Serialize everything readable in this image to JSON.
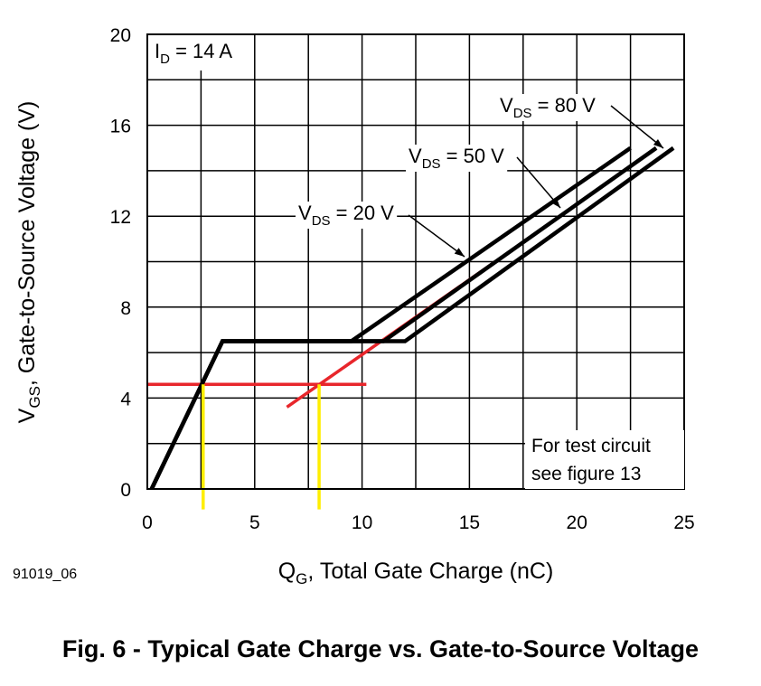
{
  "figure_id": "91019_06",
  "caption": "Fig. 6 - Typical Gate Charge vs. Gate-to-Source Voltage",
  "chart_data": {
    "type": "line",
    "title": "",
    "xlabel": {
      "main": "Q",
      "sub": "G",
      "rest": ", Total Gate Charge (nC)"
    },
    "ylabel": {
      "main": "V",
      "sub": "GS",
      "rest": ", Gate-to-Source Voltage (V)"
    },
    "xlim": [
      0,
      25
    ],
    "ylim": [
      0,
      20
    ],
    "x_ticks": [
      0,
      5,
      10,
      15,
      20,
      25
    ],
    "y_ticks": [
      0,
      4,
      8,
      12,
      16,
      20
    ],
    "grid": true,
    "grid_x_step": 2.5,
    "grid_y_step": 2,
    "condition": {
      "main": "I",
      "sub": "D",
      "rest": " = 14 A"
    },
    "note": [
      "For test circuit",
      "see figure 13"
    ],
    "series": [
      {
        "name": "VDS = 20 V",
        "label": {
          "main": "V",
          "sub": "DS",
          "rest": " = 20 V"
        },
        "color": "#000000",
        "x": [
          0.2,
          3.5,
          9.5,
          22.5
        ],
        "y": [
          0,
          6.5,
          6.5,
          15
        ]
      },
      {
        "name": "VDS = 50 V",
        "label": {
          "main": "V",
          "sub": "DS",
          "rest": " = 50 V"
        },
        "color": "#000000",
        "x": [
          0.2,
          3.5,
          11.0,
          23.7
        ],
        "y": [
          0,
          6.5,
          6.5,
          15
        ]
      },
      {
        "name": "VDS = 80 V",
        "label": {
          "main": "V",
          "sub": "DS",
          "rest": " = 80 V"
        },
        "color": "#000000",
        "x": [
          0.2,
          3.5,
          12.0,
          24.5
        ],
        "y": [
          0,
          6.5,
          6.5,
          15
        ]
      }
    ],
    "overlays": {
      "red_lines": [
        {
          "x": [
            0,
            10.2
          ],
          "y": [
            4.6,
            4.6
          ]
        },
        {
          "x": [
            6.5,
            16.2
          ],
          "y": [
            3.6,
            10
          ]
        }
      ],
      "yellow_lines": [
        {
          "x": [
            2.6,
            2.6
          ],
          "y": [
            4.6,
            -0.9
          ]
        },
        {
          "x": [
            8.0,
            8.0
          ],
          "y": [
            4.6,
            -0.9
          ]
        }
      ]
    }
  }
}
